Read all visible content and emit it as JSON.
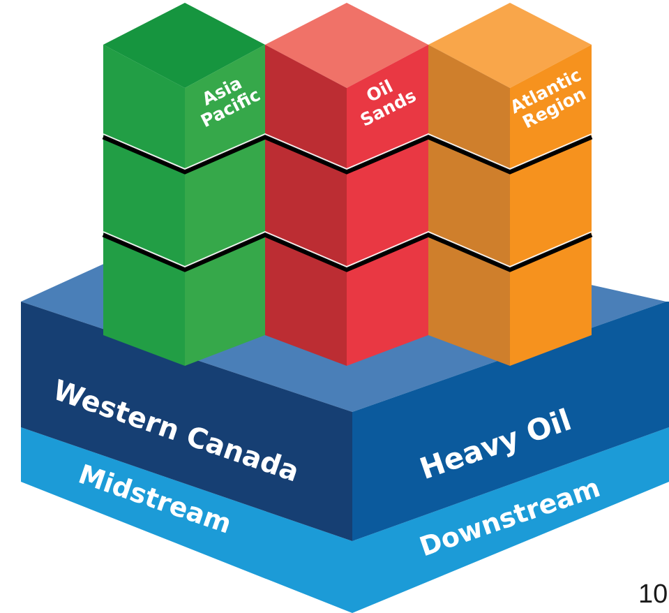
{
  "page_number": "10",
  "base": {
    "left_top_label": "Western Canada",
    "left_bottom_label": "Midstream",
    "right_top_label": "Heavy Oil",
    "right_bottom_label": "Downstream"
  },
  "columns": [
    {
      "label_line1": "Asia",
      "label_line2": "Pacific"
    },
    {
      "label_line1": "Oil",
      "label_line2": "Sands"
    },
    {
      "label_line1": "Atlantic",
      "label_line2": "Region"
    }
  ],
  "colors": {
    "base_top": "#4A7FB8",
    "base_dark_left": "#163F73",
    "base_dark_right": "#0B5A9D",
    "base_light": "#1C9BD7",
    "green_top": "#16953F",
    "green_left": "#229E45",
    "green_right": "#36A84A",
    "red_top": "#F07268",
    "red_left": "#BC2D33",
    "red_right": "#E93843",
    "orange_top": "#F9A64A",
    "orange_left": "#CF7F2C",
    "orange_right": "#F6921E",
    "seam": "#000000"
  }
}
